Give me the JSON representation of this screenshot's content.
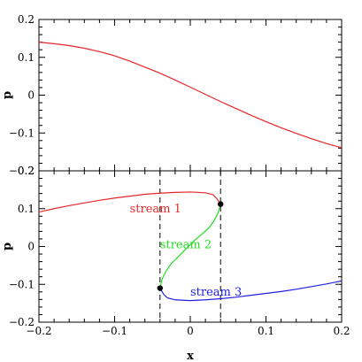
{
  "chart_data": [
    {
      "type": "line",
      "title": "",
      "xlabel": "",
      "ylabel": "p",
      "xlim": [
        -0.2,
        0.2
      ],
      "ylim": [
        -0.2,
        0.2
      ],
      "x_ticks": [
        "−0.2",
        "−0.1",
        "0",
        "0.1",
        "0.2"
      ],
      "y_ticks": [
        "0.2",
        "0.1",
        "0",
        "−0.1",
        "−0.2"
      ],
      "grid": false,
      "series": [
        {
          "name": "",
          "color": "#e8262a",
          "x": [
            -0.2,
            -0.18,
            -0.16,
            -0.14,
            -0.12,
            -0.1,
            -0.08,
            -0.06,
            -0.04,
            -0.02,
            0.0,
            0.02,
            0.04,
            0.06,
            0.08,
            0.1,
            0.12,
            0.14,
            0.16,
            0.18,
            0.2
          ],
          "y": [
            0.14,
            0.136,
            0.131,
            0.124,
            0.115,
            0.104,
            0.09,
            0.074,
            0.058,
            0.04,
            0.021,
            0.002,
            -0.017,
            -0.035,
            -0.053,
            -0.07,
            -0.086,
            -0.101,
            -0.115,
            -0.128,
            -0.139
          ]
        }
      ]
    },
    {
      "type": "line",
      "title": "",
      "xlabel": "x",
      "ylabel": "p",
      "xlim": [
        -0.2,
        0.2
      ],
      "ylim": [
        -0.2,
        0.2
      ],
      "x_ticks": [
        "−0.2",
        "−0.1",
        "0",
        "0.1",
        "0.2"
      ],
      "y_ticks": [
        "0.2",
        "0.1",
        "0",
        "−0.1",
        "−0.2"
      ],
      "grid": false,
      "series": [
        {
          "name": "stream 1",
          "color": "#e8262a",
          "x": [
            -0.2,
            -0.18,
            -0.16,
            -0.14,
            -0.12,
            -0.1,
            -0.08,
            -0.06,
            -0.04,
            -0.02,
            0.0,
            0.02,
            0.03,
            0.035,
            0.04
          ],
          "y": [
            0.091,
            0.1,
            0.108,
            0.115,
            0.122,
            0.128,
            0.133,
            0.138,
            0.141,
            0.143,
            0.144,
            0.142,
            0.137,
            0.127,
            0.112
          ]
        },
        {
          "name": "stream 2",
          "color": "#22dd22",
          "x": [
            0.04,
            0.037,
            0.032,
            0.025,
            0.015,
            0.005,
            -0.005,
            -0.015,
            -0.025,
            -0.032,
            -0.037,
            -0.04
          ],
          "y": [
            0.112,
            0.09,
            0.07,
            0.05,
            0.032,
            0.015,
            -0.005,
            -0.025,
            -0.045,
            -0.065,
            -0.085,
            -0.11
          ]
        },
        {
          "name": "stream 3",
          "color": "#2020e0",
          "x": [
            -0.04,
            -0.035,
            -0.03,
            -0.02,
            0.0,
            0.02,
            0.04,
            0.06,
            0.08,
            0.1,
            0.12,
            0.14,
            0.16,
            0.18,
            0.2
          ],
          "y": [
            -0.11,
            -0.127,
            -0.136,
            -0.141,
            -0.143,
            -0.141,
            -0.138,
            -0.134,
            -0.129,
            -0.124,
            -0.119,
            -0.113,
            -0.106,
            -0.099,
            -0.091
          ]
        }
      ],
      "markers": [
        {
          "x": -0.04,
          "y": -0.11
        },
        {
          "x": 0.04,
          "y": 0.112
        }
      ],
      "vlines": [
        -0.04,
        0.04
      ]
    }
  ]
}
